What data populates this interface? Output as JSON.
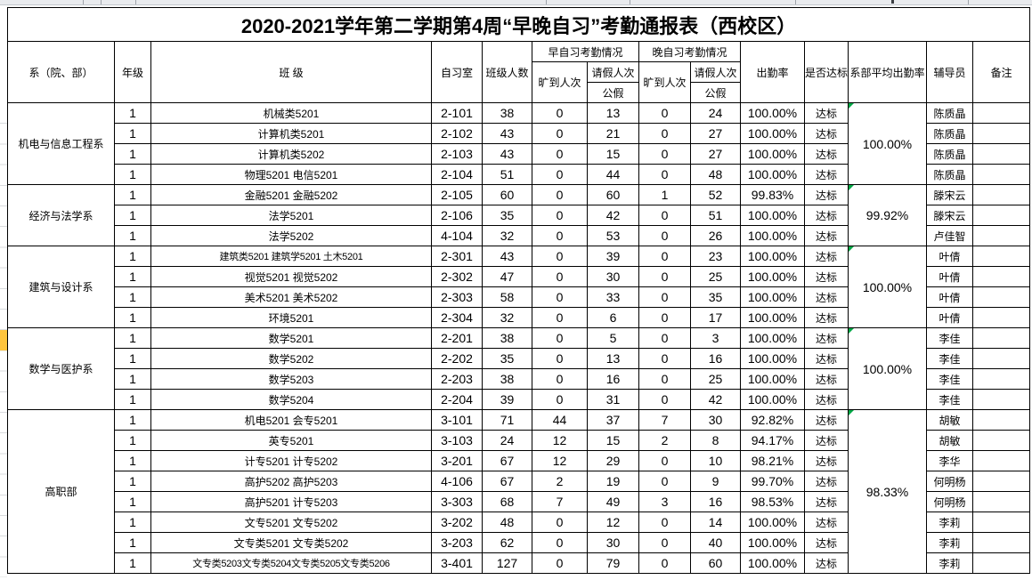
{
  "title": "2020-2021学年第二学期第4周“早晚自习”考勤通报表（西校区）",
  "headers": {
    "dept": "系（院、部）",
    "grade": "年级",
    "class": "班  级",
    "room": "自习室",
    "size": "班级人数",
    "morning": "早自习考勤情况",
    "evening": "晚自习考勤情况",
    "absent": "旷到人次",
    "leave": "请假人次",
    "public_leave": "公假",
    "rate": "出勤率",
    "qualified": "是否达标",
    "dept_avg": "系部平均出勤率",
    "counselor": "辅导员",
    "note": "备注"
  },
  "groups": [
    {
      "dept": "机电与信息工程系",
      "avg": "100.00%",
      "rows": [
        {
          "grade": "1",
          "class": "机械类5201",
          "room": "2-101",
          "size": "38",
          "m_absent": "0",
          "m_leave": "13",
          "e_absent": "0",
          "e_leave": "24",
          "rate": "100.00%",
          "status": "达标",
          "counselor": "陈质晶",
          "note": ""
        },
        {
          "grade": "1",
          "class": "计算机类5201",
          "room": "2-102",
          "size": "43",
          "m_absent": "0",
          "m_leave": "21",
          "e_absent": "0",
          "e_leave": "27",
          "rate": "100.00%",
          "status": "达标",
          "counselor": "陈质晶",
          "note": ""
        },
        {
          "grade": "1",
          "class": "计算机类5202",
          "room": "2-103",
          "size": "43",
          "m_absent": "0",
          "m_leave": "15",
          "e_absent": "0",
          "e_leave": "27",
          "rate": "100.00%",
          "status": "达标",
          "counselor": "陈质晶",
          "note": ""
        },
        {
          "grade": "1",
          "class": "物理5201 电信5201",
          "room": "2-104",
          "size": "51",
          "m_absent": "0",
          "m_leave": "44",
          "e_absent": "0",
          "e_leave": "48",
          "rate": "100.00%",
          "status": "达标",
          "counselor": "陈质晶",
          "note": ""
        }
      ]
    },
    {
      "dept": "经济与法学系",
      "avg": "99.92%",
      "rows": [
        {
          "grade": "1",
          "class": "金融5201 金融5202",
          "room": "2-105",
          "size": "60",
          "m_absent": "0",
          "m_leave": "60",
          "e_absent": "1",
          "e_leave": "52",
          "rate": "99.83%",
          "status": "达标",
          "counselor": "滕宋云",
          "note": ""
        },
        {
          "grade": "1",
          "class": "法学5201",
          "room": "2-106",
          "size": "35",
          "m_absent": "0",
          "m_leave": "42",
          "e_absent": "0",
          "e_leave": "51",
          "rate": "100.00%",
          "status": "达标",
          "counselor": "滕宋云",
          "note": ""
        },
        {
          "grade": "1",
          "class": "法学5202",
          "room": "4-104",
          "size": "32",
          "m_absent": "0",
          "m_leave": "53",
          "e_absent": "0",
          "e_leave": "26",
          "rate": "100.00%",
          "status": "达标",
          "counselor": "卢佳智",
          "note": ""
        }
      ]
    },
    {
      "dept": "建筑与设计系",
      "avg": "100.00%",
      "rows": [
        {
          "grade": "1",
          "class": "建筑类5201  建筑学5201  土木5201",
          "room": "2-301",
          "size": "43",
          "m_absent": "0",
          "m_leave": "39",
          "e_absent": "0",
          "e_leave": "23",
          "rate": "100.00%",
          "status": "达标",
          "counselor": "叶倩",
          "note": ""
        },
        {
          "grade": "1",
          "class": "视觉5201 视觉5202",
          "room": "2-302",
          "size": "47",
          "m_absent": "0",
          "m_leave": "30",
          "e_absent": "0",
          "e_leave": "25",
          "rate": "100.00%",
          "status": "达标",
          "counselor": "叶倩",
          "note": ""
        },
        {
          "grade": "1",
          "class": "美术5201 美术5202",
          "room": "2-303",
          "size": "58",
          "m_absent": "0",
          "m_leave": "33",
          "e_absent": "0",
          "e_leave": "35",
          "rate": "100.00%",
          "status": "达标",
          "counselor": "叶倩",
          "note": ""
        },
        {
          "grade": "1",
          "class": "环境5201",
          "room": "2-304",
          "size": "32",
          "m_absent": "0",
          "m_leave": "6",
          "e_absent": "0",
          "e_leave": "17",
          "rate": "100.00%",
          "status": "达标",
          "counselor": "叶倩",
          "note": ""
        }
      ]
    },
    {
      "dept": "数学与医护系",
      "avg": "100.00%",
      "rows": [
        {
          "grade": "1",
          "class": "数学5201",
          "room": "2-201",
          "size": "38",
          "m_absent": "0",
          "m_leave": "5",
          "e_absent": "0",
          "e_leave": "3",
          "rate": "100.00%",
          "status": "达标",
          "counselor": "李佳",
          "note": ""
        },
        {
          "grade": "1",
          "class": "数学5202",
          "room": "2-202",
          "size": "35",
          "m_absent": "0",
          "m_leave": "13",
          "e_absent": "0",
          "e_leave": "16",
          "rate": "100.00%",
          "status": "达标",
          "counselor": "李佳",
          "note": ""
        },
        {
          "grade": "1",
          "class": "数学5203",
          "room": "2-203",
          "size": "38",
          "m_absent": "0",
          "m_leave": "16",
          "e_absent": "0",
          "e_leave": "25",
          "rate": "100.00%",
          "status": "达标",
          "counselor": "李佳",
          "note": ""
        },
        {
          "grade": "1",
          "class": "数学5204",
          "room": "2-204",
          "size": "39",
          "m_absent": "0",
          "m_leave": "31",
          "e_absent": "0",
          "e_leave": "42",
          "rate": "100.00%",
          "status": "达标",
          "counselor": "李佳",
          "note": ""
        }
      ]
    },
    {
      "dept": "高职部",
      "avg": "98.33%",
      "rows": [
        {
          "grade": "1",
          "class": "机电5201 会专5201",
          "room": "3-101",
          "size": "71",
          "m_absent": "44",
          "m_leave": "37",
          "e_absent": "7",
          "e_leave": "30",
          "rate": "92.82%",
          "status": "达标",
          "counselor": "胡敏",
          "note": ""
        },
        {
          "grade": "1",
          "class": "英专5201",
          "room": "3-103",
          "size": "24",
          "m_absent": "12",
          "m_leave": "15",
          "e_absent": "2",
          "e_leave": "8",
          "rate": "94.17%",
          "status": "达标",
          "counselor": "胡敏",
          "note": ""
        },
        {
          "grade": "1",
          "class": "计专5201 计专5202",
          "room": "3-201",
          "size": "67",
          "m_absent": "12",
          "m_leave": "29",
          "e_absent": "0",
          "e_leave": "10",
          "rate": "98.21%",
          "status": "达标",
          "counselor": "李华",
          "note": ""
        },
        {
          "grade": "1",
          "class": "高护5202 高护5203",
          "room": "4-106",
          "size": "67",
          "m_absent": "2",
          "m_leave": "19",
          "e_absent": "0",
          "e_leave": "9",
          "rate": "99.70%",
          "status": "达标",
          "counselor": "何明杨",
          "note": ""
        },
        {
          "grade": "1",
          "class": "高护5201 计专5203",
          "room": "3-303",
          "size": "68",
          "m_absent": "7",
          "m_leave": "49",
          "e_absent": "3",
          "e_leave": "16",
          "rate": "98.53%",
          "status": "达标",
          "counselor": "何明杨",
          "note": ""
        },
        {
          "grade": "1",
          "class": "文专5201  文专5202",
          "room": "3-202",
          "size": "48",
          "m_absent": "0",
          "m_leave": "12",
          "e_absent": "0",
          "e_leave": "14",
          "rate": "100.00%",
          "status": "达标",
          "counselor": "李莉",
          "note": ""
        },
        {
          "grade": "1",
          "class": "文专类5201 文专类5202",
          "room": "3-203",
          "size": "62",
          "m_absent": "0",
          "m_leave": "30",
          "e_absent": "0",
          "e_leave": "40",
          "rate": "100.00%",
          "status": "达标",
          "counselor": "李莉",
          "note": ""
        },
        {
          "grade": "1",
          "class": "文专类5203文专类5204文专类5205文专类5206",
          "room": "3-401",
          "size": "127",
          "m_absent": "0",
          "m_leave": "79",
          "e_absent": "0",
          "e_leave": "60",
          "rate": "100.00%",
          "status": "达标",
          "counselor": "李莉",
          "note": ""
        }
      ]
    }
  ],
  "colors": {
    "highlight_yellow": "#FFC53D",
    "comment_marker_green": "#00A846",
    "border_black": "#000000",
    "grid_gray": "#D9DBDE"
  }
}
